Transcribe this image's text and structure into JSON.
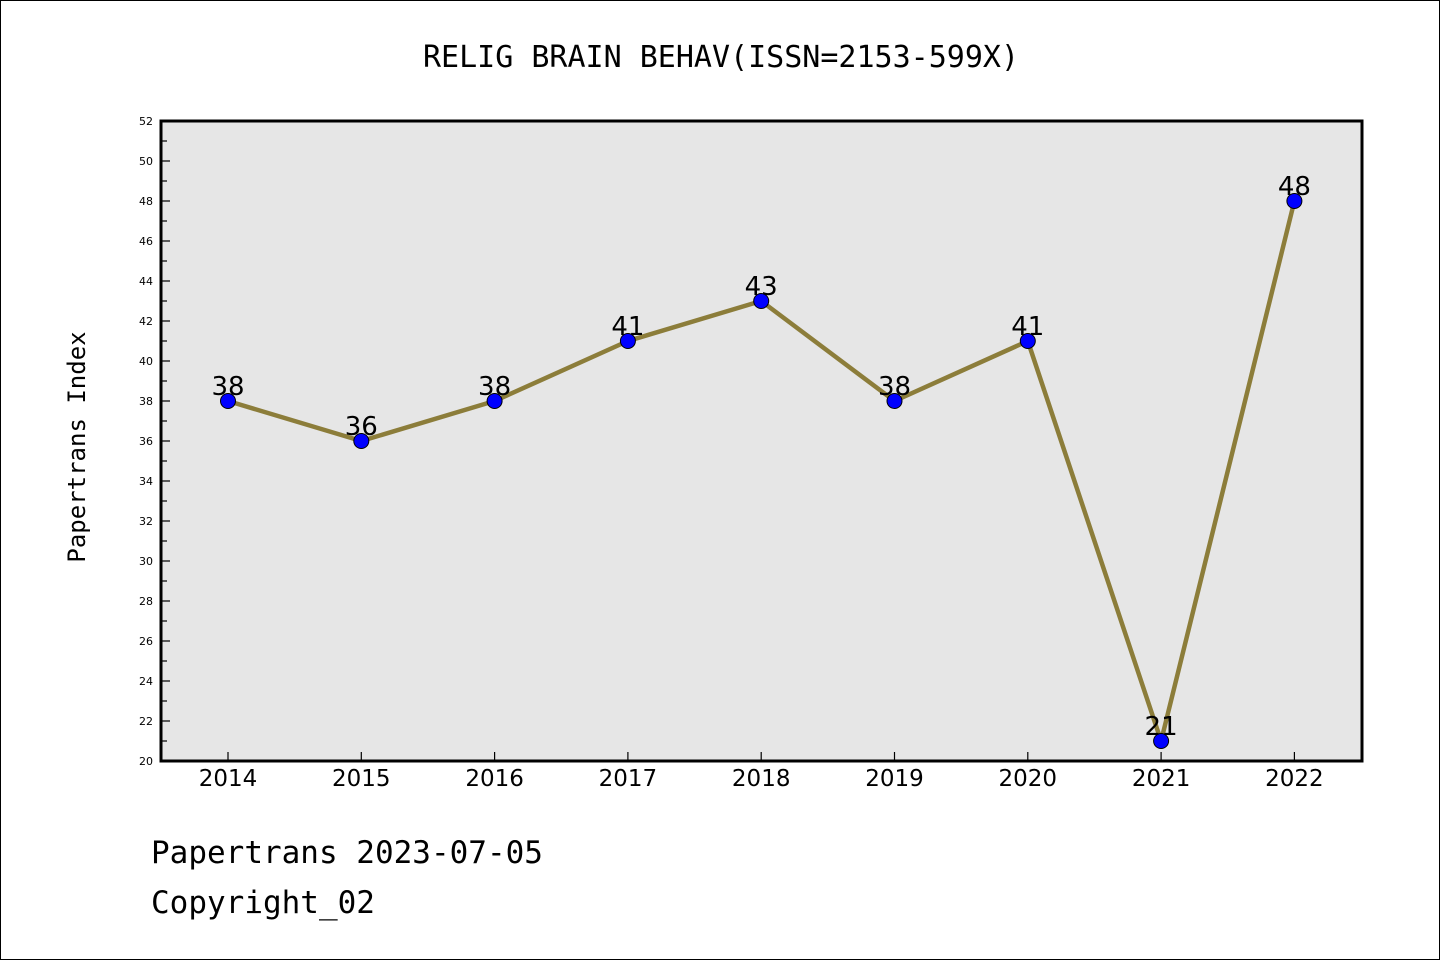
{
  "chart_data": {
    "type": "line",
    "title": "RELIG BRAIN BEHAV(ISSN=2153-599X)",
    "xlabel": "",
    "ylabel": "Papertrans Index",
    "categories": [
      "2014",
      "2015",
      "2016",
      "2017",
      "2018",
      "2019",
      "2020",
      "2021",
      "2022"
    ],
    "series": [
      {
        "values": [
          38,
          36,
          38,
          41,
          43,
          38,
          41,
          21,
          48
        ]
      }
    ],
    "ylim": [
      20,
      52
    ],
    "yticks": [
      20,
      22,
      24,
      26,
      28,
      30,
      32,
      34,
      36,
      38,
      40,
      42,
      44,
      46,
      48,
      50,
      52
    ],
    "data_labels": true,
    "grid": false,
    "legend": "none",
    "colors": {
      "line": "#8c7d3a",
      "marker": "#0000ff",
      "plot_background": "#e6e6e6"
    }
  },
  "footer": {
    "line1": "Papertrans 2023-07-05",
    "line2": "Copyright_02"
  }
}
